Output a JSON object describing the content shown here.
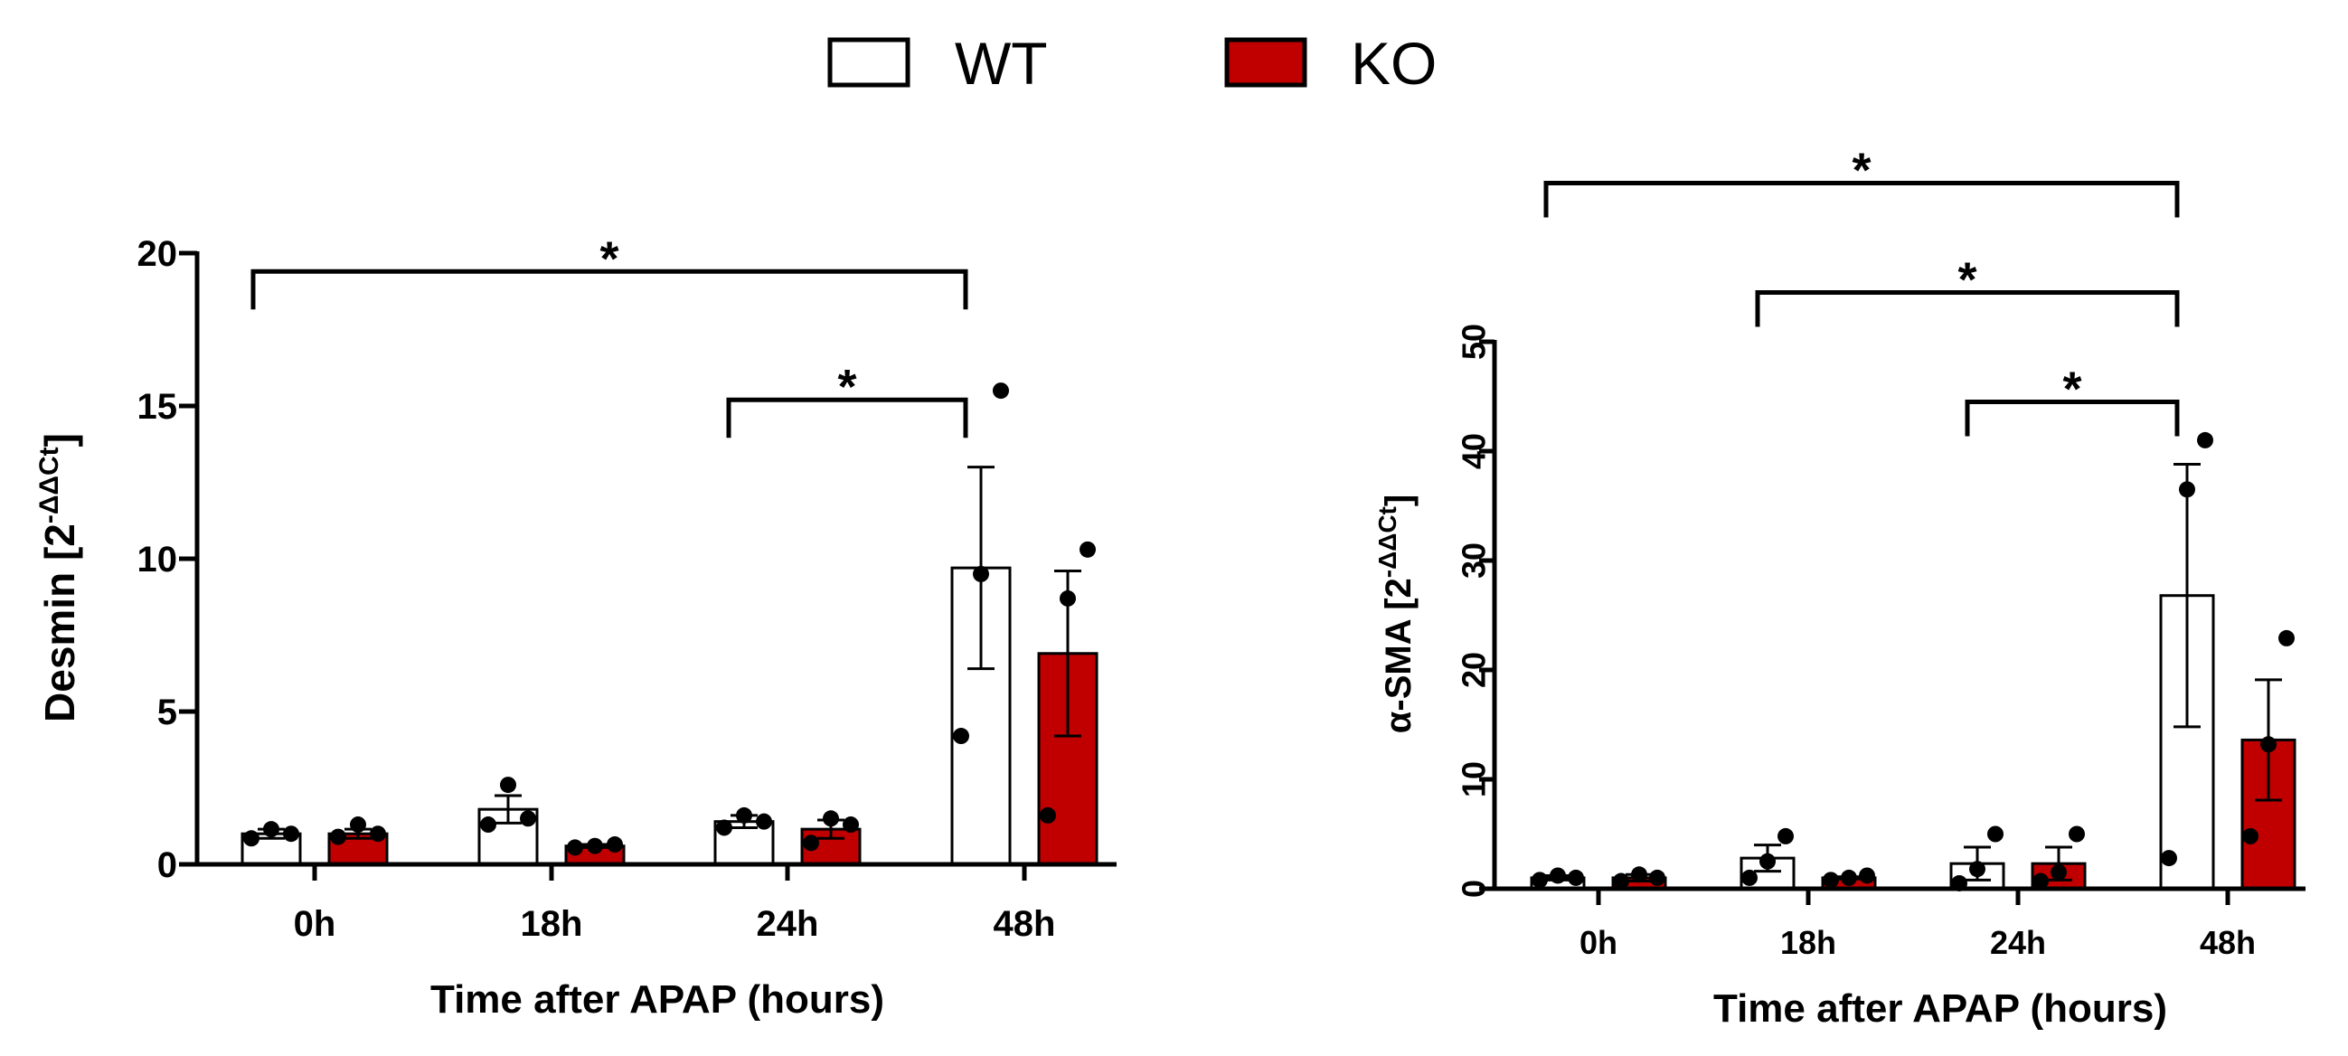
{
  "legend": [
    {
      "label": "WT",
      "color": "#ffffff"
    },
    {
      "label": "KO",
      "color": "#c00000"
    }
  ],
  "chart_data": [
    {
      "type": "bar",
      "title": "",
      "categories": [
        "0h",
        "18h",
        "24h",
        "48h"
      ],
      "xlabel": "Time after APAP (hours)",
      "ylabel_main": "Desmin [2",
      "ylabel_sup": "-ΔΔCt",
      "ylabel_close": "]",
      "ylim": [
        0,
        20
      ],
      "yticks": [
        0,
        5,
        10,
        15,
        20
      ],
      "series": [
        {
          "name": "WT",
          "color": "#ffffff",
          "values": [
            1.0,
            1.8,
            1.4,
            9.7
          ],
          "sem": [
            0.15,
            0.45,
            0.2,
            3.3
          ],
          "points": [
            [
              0.85,
              1.15,
              1.0
            ],
            [
              1.3,
              2.6,
              1.5
            ],
            [
              1.2,
              1.6,
              1.4
            ],
            [
              4.2,
              9.5,
              15.5
            ]
          ]
        },
        {
          "name": "KO",
          "color": "#c00000",
          "values": [
            1.0,
            0.6,
            1.15,
            6.9
          ],
          "sem": [
            0.15,
            0.05,
            0.3,
            2.7
          ],
          "points": [
            [
              0.9,
              1.3,
              1.0
            ],
            [
              0.55,
              0.6,
              0.65
            ],
            [
              0.7,
              1.5,
              1.3
            ],
            [
              1.6,
              8.7,
              10.3
            ]
          ]
        }
      ],
      "brackets": [
        {
          "from": 0,
          "to": 3,
          "label": "*",
          "y": 19.4
        },
        {
          "from": 2,
          "to": 3,
          "label": "*",
          "y": 15.2
        }
      ]
    },
    {
      "type": "bar",
      "title": "",
      "categories": [
        "0h",
        "18h",
        "24h",
        "48h"
      ],
      "xlabel": "Time after APAP (hours)",
      "ylabel_main": "α-SMA [2",
      "ylabel_sup": "-ΔΔCt",
      "ylabel_close": "]",
      "ylim": [
        0,
        50
      ],
      "yticks": [
        0,
        10,
        20,
        30,
        40,
        50
      ],
      "series": [
        {
          "name": "WT",
          "color": "#ffffff",
          "values": [
            1.0,
            2.8,
            2.3,
            26.8
          ],
          "sem": [
            0.2,
            1.2,
            1.5,
            12.0
          ],
          "points": [
            [
              0.8,
              1.2,
              1.0
            ],
            [
              1.0,
              2.5,
              4.8
            ],
            [
              0.5,
              1.8,
              5.0
            ],
            [
              2.8,
              36.5,
              41.0
            ]
          ]
        },
        {
          "name": "KO",
          "color": "#c00000",
          "values": [
            1.0,
            1.0,
            2.3,
            13.6
          ],
          "sem": [
            0.3,
            0.1,
            1.5,
            5.5
          ],
          "points": [
            [
              0.7,
              1.3,
              1.0
            ],
            [
              0.8,
              1.0,
              1.2
            ],
            [
              0.7,
              1.5,
              5.0
            ],
            [
              4.8,
              13.2,
              22.9
            ]
          ]
        }
      ],
      "brackets": [
        {
          "from": 0,
          "to": 3,
          "label": "*",
          "y": 64.5
        },
        {
          "from": 1,
          "to": 3,
          "label": "*",
          "y": 54.5
        },
        {
          "from": 2,
          "to": 3,
          "label": "*",
          "y": 44.5
        }
      ]
    }
  ]
}
